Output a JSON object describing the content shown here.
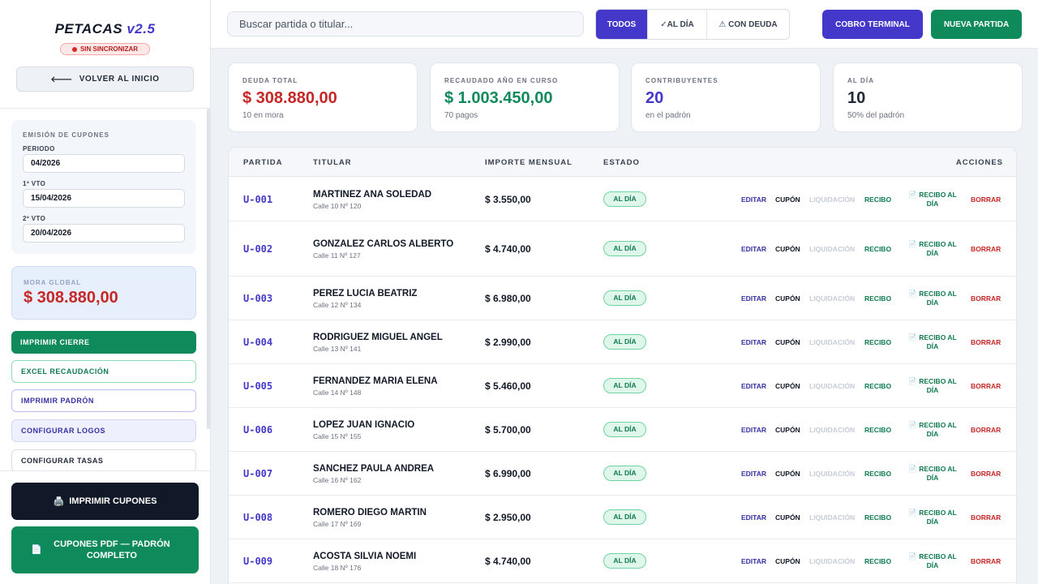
{
  "sidebar": {
    "brand": {
      "name": "PETACAS",
      "version": "v2.5"
    },
    "sync_badge": "SIN SINCRONIZAR",
    "back_label": "VOLVER AL INICIO",
    "emission": {
      "title": "EMISIÓN DE CUPONES",
      "periodo_label": "PERIODO",
      "periodo_value": "04/2026",
      "vto1_label": "1º VTO",
      "vto1_value": "15/04/2026",
      "vto2_label": "2º VTO",
      "vto2_value": "20/04/2026"
    },
    "mora": {
      "label": "MORA GLOBAL",
      "value": "$ 308.880,00"
    },
    "buttons": {
      "cierre": "IMPRIMIR CIERRE",
      "excel": "EXCEL RECAUDACIÓN",
      "padron": "IMPRIMIR PADRÓN",
      "logos": "CONFIGURAR LOGOS",
      "tasas": "CONFIGURAR TASAS"
    },
    "bottom": {
      "cupones": "IMPRIMIR CUPONES",
      "pdf": "CUPONES PDF — PADRÓN COMPLETO"
    }
  },
  "topbar": {
    "search_placeholder": "Buscar partida o titular...",
    "filters": {
      "todos": "TODOS",
      "aldia": "AL DÍA",
      "deuda": "CON DEUDA"
    },
    "cobro": "COBRO TERMINAL",
    "nueva": "NUEVA PARTIDA"
  },
  "stats": [
    {
      "label": "DEUDA TOTAL",
      "value": "$ 308.880,00",
      "sub": "10 en mora"
    },
    {
      "label": "RECAUDADO AÑO EN CURSO",
      "value": "$ 1.003.450,00",
      "sub": "70 pagos"
    },
    {
      "label": "CONTRIBUYENTES",
      "value": "20",
      "sub": "en el padrón"
    },
    {
      "label": "AL DÍA",
      "value": "10",
      "sub": "50% del padrón"
    }
  ],
  "table": {
    "headers": {
      "partida": "PARTIDA",
      "titular": "TITULAR",
      "importe": "IMPORTE MENSUAL",
      "estado": "ESTADO",
      "acciones": "ACCIONES"
    },
    "actions": {
      "editar": "EDITAR",
      "cupon": "CUPÓN",
      "liquidacion": "LIQUIDACIÓN",
      "recibo": "RECIBO",
      "recibo_dia": "RECIBO AL DÍA",
      "borrar": "BORRAR"
    },
    "rows": [
      {
        "partida": "U-001",
        "name": "MARTINEZ ANA SOLEDAD",
        "addr": "Calle 10 Nº 120",
        "importe": "$ 3.550,00",
        "estado": "AL DÍA"
      },
      {
        "partida": "U-002",
        "name": "GONZALEZ CARLOS ALBERTO",
        "addr": "Calle 11 Nº 127",
        "importe": "$ 4.740,00",
        "estado": "AL DÍA"
      },
      {
        "partida": "U-003",
        "name": "PEREZ LUCIA BEATRIZ",
        "addr": "Calle 12 Nº 134",
        "importe": "$ 6.980,00",
        "estado": "AL DÍA"
      },
      {
        "partida": "U-004",
        "name": "RODRIGUEZ MIGUEL ANGEL",
        "addr": "Calle 13 Nº 141",
        "importe": "$ 2.990,00",
        "estado": "AL DÍA"
      },
      {
        "partida": "U-005",
        "name": "FERNANDEZ MARIA ELENA",
        "addr": "Calle 14 Nº 148",
        "importe": "$ 5.460,00",
        "estado": "AL DÍA"
      },
      {
        "partida": "U-006",
        "name": "LOPEZ JUAN IGNACIO",
        "addr": "Calle 15 Nº 155",
        "importe": "$ 5.700,00",
        "estado": "AL DÍA"
      },
      {
        "partida": "U-007",
        "name": "SANCHEZ PAULA ANDREA",
        "addr": "Calle 16 Nº 162",
        "importe": "$ 6.990,00",
        "estado": "AL DÍA"
      },
      {
        "partida": "U-008",
        "name": "ROMERO DIEGO MARTIN",
        "addr": "Calle 17 Nº 169",
        "importe": "$ 2.950,00",
        "estado": "AL DÍA"
      },
      {
        "partida": "U-009",
        "name": "ACOSTA SILVIA NOEMI",
        "addr": "Calle 18 Nº 176",
        "importe": "$ 4.740,00",
        "estado": "AL DÍA"
      }
    ]
  }
}
